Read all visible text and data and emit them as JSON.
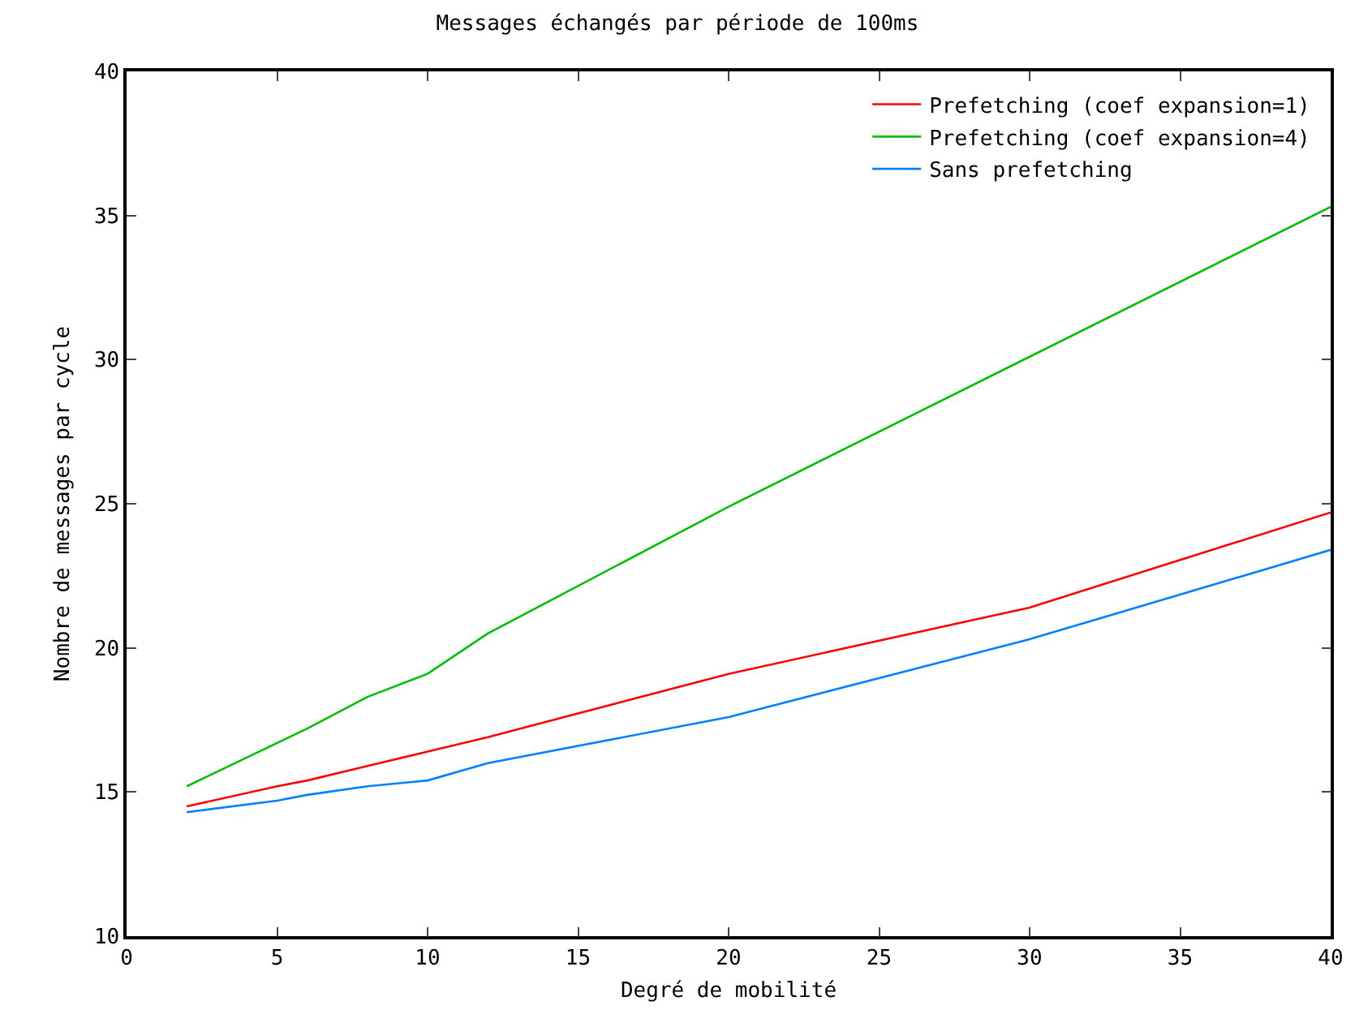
{
  "chart_data": {
    "type": "line",
    "title": "Messages échangés par période de 100ms",
    "xlabel": "Degré de mobilité",
    "ylabel": "Nombre de messages par cycle",
    "x": [
      2,
      5,
      6,
      8,
      10,
      12,
      20,
      30,
      40
    ],
    "series": [
      {
        "name": "Prefetching (coef expansion=1)",
        "color": "#ff0000",
        "values": [
          14.5,
          15.2,
          15.4,
          15.9,
          16.4,
          16.9,
          19.1,
          21.4,
          24.7
        ]
      },
      {
        "name": "Prefetching (coef expansion=4)",
        "color": "#00c000",
        "values": [
          15.2,
          16.7,
          17.2,
          18.3,
          19.1,
          20.5,
          24.9,
          30.1,
          35.3
        ]
      },
      {
        "name": "Sans prefetching",
        "color": "#0080ff",
        "values": [
          14.3,
          14.7,
          14.9,
          15.2,
          15.4,
          16.0,
          17.6,
          20.3,
          23.4
        ]
      }
    ],
    "xlim": [
      0,
      40
    ],
    "xticks": [
      0,
      5,
      10,
      15,
      20,
      25,
      30,
      35,
      40
    ],
    "ylim": [
      10,
      40
    ],
    "yticks": [
      10,
      15,
      20,
      25,
      30,
      35,
      40
    ],
    "grid": false,
    "legend": "top right",
    "line_style": "solid",
    "marker": "none"
  }
}
